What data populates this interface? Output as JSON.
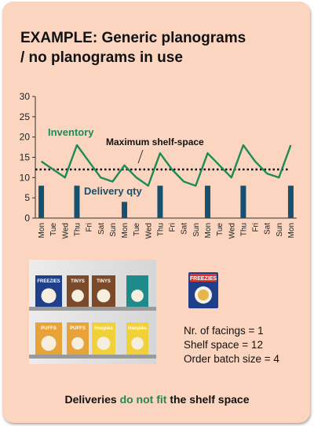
{
  "title_line1": "EXAMPLE: Generic planograms",
  "title_line2": "/ no planograms in use",
  "chart_data": {
    "type": "line",
    "categories": [
      "Mon",
      "Tue",
      "Wed",
      "Thu",
      "Fri",
      "Sat",
      "Sun",
      "Mon",
      "Tue",
      "Wed",
      "Thu",
      "Fri",
      "Sat",
      "Sun",
      "Mon",
      "Tue",
      "Wed",
      "Thu",
      "Fri",
      "Sat",
      "Sun",
      "Mon"
    ],
    "series": [
      {
        "name": "Inventory",
        "type": "line",
        "color": "#1f8a55",
        "values": [
          14,
          12,
          10,
          18,
          14,
          10,
          9,
          13,
          10,
          8,
          16,
          12,
          9,
          8,
          16,
          13,
          10,
          18,
          14,
          11,
          10,
          18
        ]
      },
      {
        "name": "Delivery qty",
        "type": "bar",
        "color": "#16516f",
        "values": [
          8,
          0,
          0,
          8,
          0,
          0,
          0,
          4,
          0,
          0,
          8,
          0,
          0,
          0,
          8,
          0,
          0,
          8,
          0,
          0,
          0,
          8
        ]
      },
      {
        "name": "Maximum shelf-space",
        "type": "reference",
        "style": "dotted",
        "color": "#111111",
        "value": 12
      }
    ],
    "ylim": [
      0,
      30
    ],
    "yticks": [
      0,
      5,
      10,
      15,
      20,
      25,
      30
    ],
    "grid": false,
    "labels": {
      "inventory": "Inventory",
      "max_shelf": "Maximum shelf-space",
      "delivery": "Delivery qty"
    }
  },
  "shelf": {
    "products_top": [
      {
        "name": "FREEZIES",
        "color": "#1f3f8a"
      },
      {
        "name": "TINYS",
        "color": "#7a4a2a"
      },
      {
        "name": "TINYS",
        "color": "#7a4a2a"
      },
      {
        "name": "",
        "color": "#1f8a8a"
      }
    ],
    "products_bottom": [
      {
        "name": "PUFFS",
        "color": "#e7a33a"
      },
      {
        "name": "PUFFS",
        "color": "#e7a33a"
      },
      {
        "name": "Hoopies",
        "color": "#f1d13a"
      },
      {
        "name": "Hoopies",
        "color": "#f1d13a"
      }
    ],
    "box_icon_label": "FREEZIES"
  },
  "facts": {
    "facings": "Nr. of facings = 1",
    "shelf_space": "Shelf space = 12",
    "batch": "Order batch size = 4"
  },
  "footer": {
    "part1": "Deliveries ",
    "highlight": "do not fit",
    "part2": " the shelf space"
  },
  "colors": {
    "background": "#fbd5bf",
    "inventory": "#1f8a55",
    "delivery": "#16516f"
  }
}
